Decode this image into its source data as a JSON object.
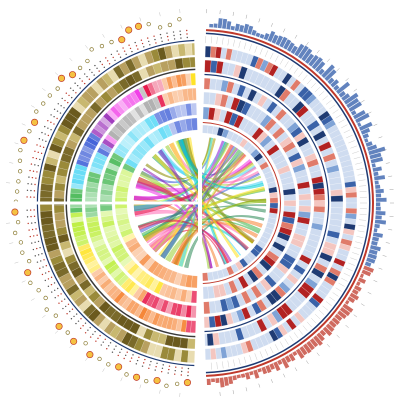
{
  "figure": {
    "type": "circos",
    "title": "",
    "left_half": {
      "tracks": [
        "scatter-circles",
        "dot-columns",
        "olive-heatmap",
        "olive-heatmap",
        "rainbow-heatmap",
        "rainbow-heatmap",
        "rainbow-heatmap",
        "rainbow-heatmap"
      ],
      "palette": [
        "#e6194b",
        "#f58231",
        "#ffe119",
        "#bfef45",
        "#3cb44b",
        "#42d4f4",
        "#4363d8",
        "#911eb4",
        "#f032e6",
        "#a9a9a9"
      ],
      "olive_palette": [
        "#6b5a1e",
        "#9a8a3a",
        "#c8b870",
        "#e8dcb0",
        "#b8a060",
        "#7a6a2a"
      ]
    },
    "right_half": {
      "tracks": [
        "blue-histogram",
        "scale-ring",
        "heatmap-blue",
        "heatmap-red-blue",
        "heatmap-red-blue",
        "heatmap-blue"
      ],
      "palette": [
        "#1f3b73",
        "#3a62a8",
        "#7fa3d6",
        "#cfdcf0",
        "#f4c6c0",
        "#e07b6a",
        "#b22222"
      ],
      "histogram_colors": {
        "top": "#2e5aa8",
        "bottom": "#c0392b"
      }
    },
    "links": {
      "count": 60,
      "colors": [
        "#e6194b",
        "#f58231",
        "#ffe119",
        "#bfef45",
        "#3cb44b",
        "#42d4f4",
        "#4363d8",
        "#911eb4",
        "#f032e6",
        "#8b8b00",
        "#2e8b57",
        "#ff69b4",
        "#00ced1",
        "#9acd32"
      ]
    },
    "tick_labels": []
  }
}
